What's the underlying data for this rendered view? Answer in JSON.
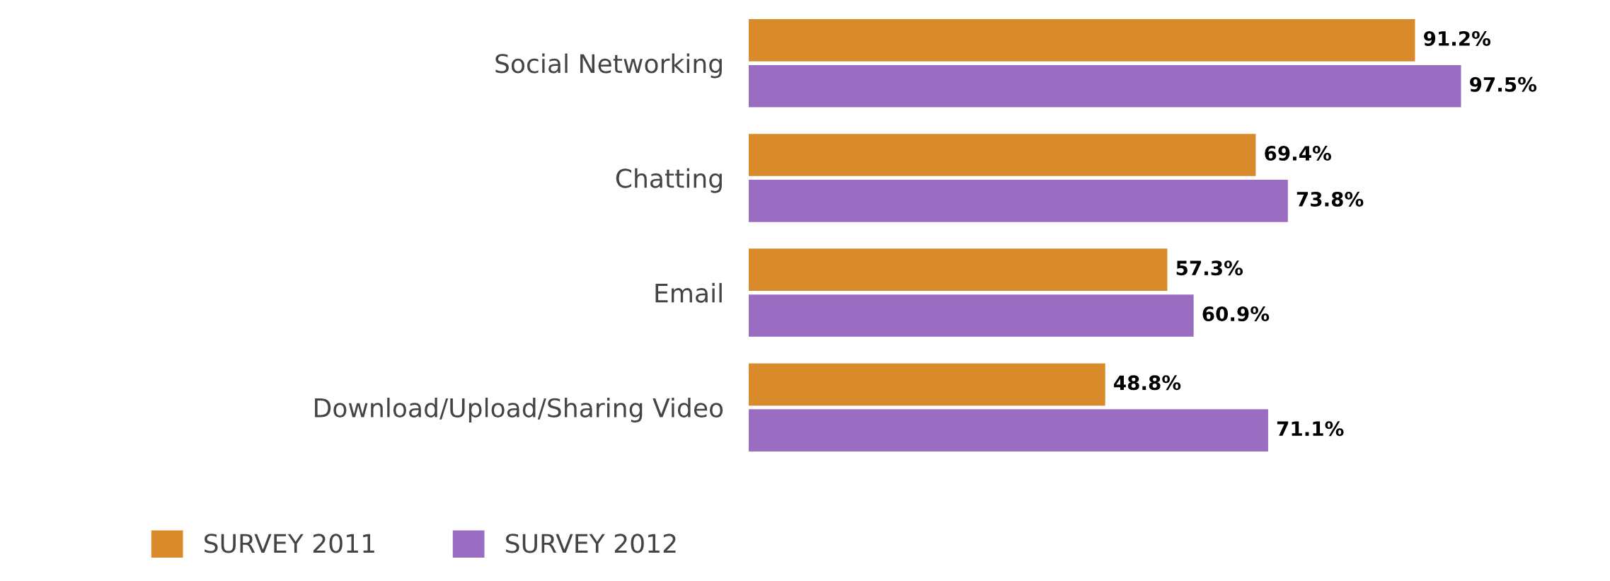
{
  "chart_data": {
    "type": "bar",
    "orientation": "horizontal",
    "categories": [
      "Social Networking",
      "Chatting",
      "Email",
      "Download/Upload/Sharing Video"
    ],
    "series": [
      {
        "name": "SURVEY 2011",
        "color": "#d98b2b",
        "values": [
          91.2,
          69.4,
          57.3,
          48.8
        ],
        "value_labels": [
          "91.2%",
          "69.4%",
          "57.3%",
          "48.8%"
        ]
      },
      {
        "name": "SURVEY 2012",
        "color": "#9a6cc2",
        "values": [
          97.5,
          73.8,
          60.9,
          71.1
        ],
        "value_labels": [
          "97.5%",
          "73.8%",
          "60.9%",
          "71.1%"
        ]
      }
    ],
    "tick_labels": "y",
    "grid": false,
    "legend": "bottom left"
  }
}
